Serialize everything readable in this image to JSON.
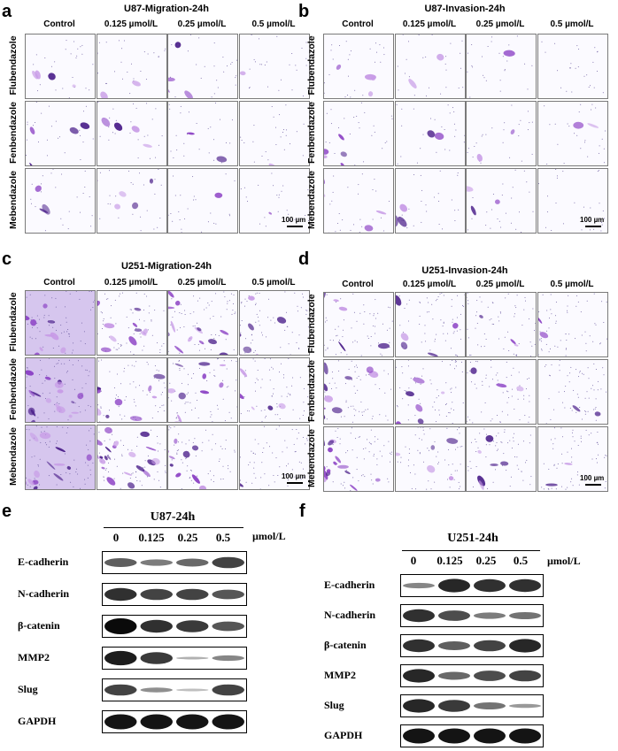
{
  "panels": [
    {
      "label": "a",
      "title": "U87-Migration-24h",
      "scale": "100 µm",
      "style": "sparse"
    },
    {
      "label": "b",
      "title": "U87-Invasion-24h",
      "scale": "100 µm",
      "style": "sparse"
    },
    {
      "label": "c",
      "title": "U251-Migration-24h",
      "scale": "100 µm",
      "style": "dense"
    },
    {
      "label": "d",
      "title": "U251-Invasion-24h",
      "scale": "100 µm",
      "style": "dense"
    }
  ],
  "conditions": [
    "Control",
    "0.125 µmol/L",
    "0.25 µmol/L",
    "0.5 µmol/L"
  ],
  "drugs": [
    "Flubendazole",
    "Fenbendazole",
    "Mebendazole"
  ],
  "densities": {
    "a": [
      [
        0.55,
        0.45,
        0.35,
        0.1
      ],
      [
        0.8,
        0.55,
        0.3,
        0.18
      ],
      [
        0.55,
        0.45,
        0.18,
        0.1
      ]
    ],
    "b": [
      [
        0.55,
        0.22,
        0.12,
        0.1
      ],
      [
        0.55,
        0.55,
        0.15,
        0.14
      ],
      [
        0.55,
        0.3,
        0.15,
        0.18
      ]
    ],
    "c": [
      [
        0.95,
        0.75,
        0.6,
        0.45
      ],
      [
        1.0,
        0.85,
        0.55,
        0.4
      ],
      [
        1.0,
        0.85,
        0.7,
        0.4
      ]
    ],
    "d": [
      [
        0.75,
        0.55,
        0.28,
        0.18
      ],
      [
        0.75,
        0.65,
        0.25,
        0.1
      ],
      [
        0.8,
        0.55,
        0.3,
        0.15
      ]
    ]
  },
  "westerns": [
    {
      "label": "e",
      "title": "U87-24h",
      "unit": "µmol/L",
      "doses": [
        "0",
        "0.125",
        "0.25",
        "0.5"
      ],
      "rows": [
        {
          "name": "E-cadherin",
          "bands": [
            0.55,
            0.4,
            0.5,
            0.7
          ]
        },
        {
          "name": "N-cadherin",
          "bands": [
            0.8,
            0.7,
            0.7,
            0.6
          ]
        },
        {
          "name": "β-catenin",
          "bands": [
            1.0,
            0.8,
            0.75,
            0.6
          ]
        },
        {
          "name": "MMP2",
          "bands": [
            0.9,
            0.75,
            0.12,
            0.35
          ]
        },
        {
          "name": "Slug",
          "bands": [
            0.7,
            0.3,
            0.05,
            0.7
          ]
        },
        {
          "name": "GAPDH",
          "bands": [
            0.95,
            0.95,
            0.95,
            0.95
          ]
        }
      ]
    },
    {
      "label": "f",
      "title": "U251-24h",
      "unit": "µmol/L",
      "doses": [
        "0",
        "0.125",
        "0.25",
        "0.5"
      ],
      "rows": [
        {
          "name": "E-cadherin",
          "bands": [
            0.35,
            0.85,
            0.8,
            0.8
          ]
        },
        {
          "name": "N-cadherin",
          "bands": [
            0.8,
            0.65,
            0.4,
            0.45
          ]
        },
        {
          "name": "β-catenin",
          "bands": [
            0.8,
            0.55,
            0.7,
            0.85
          ]
        },
        {
          "name": "MMP2",
          "bands": [
            0.85,
            0.5,
            0.65,
            0.7
          ]
        },
        {
          "name": "Slug",
          "bands": [
            0.85,
            0.75,
            0.45,
            0.25
          ]
        },
        {
          "name": "GAPDH",
          "bands": [
            0.95,
            0.95,
            0.95,
            0.95
          ]
        }
      ]
    }
  ],
  "colors": {
    "stain": "#8a3fc4",
    "stain_dark": "#4b1f8a",
    "stain_light": "#c79ae6",
    "tile_bg": "#fbfaff"
  }
}
